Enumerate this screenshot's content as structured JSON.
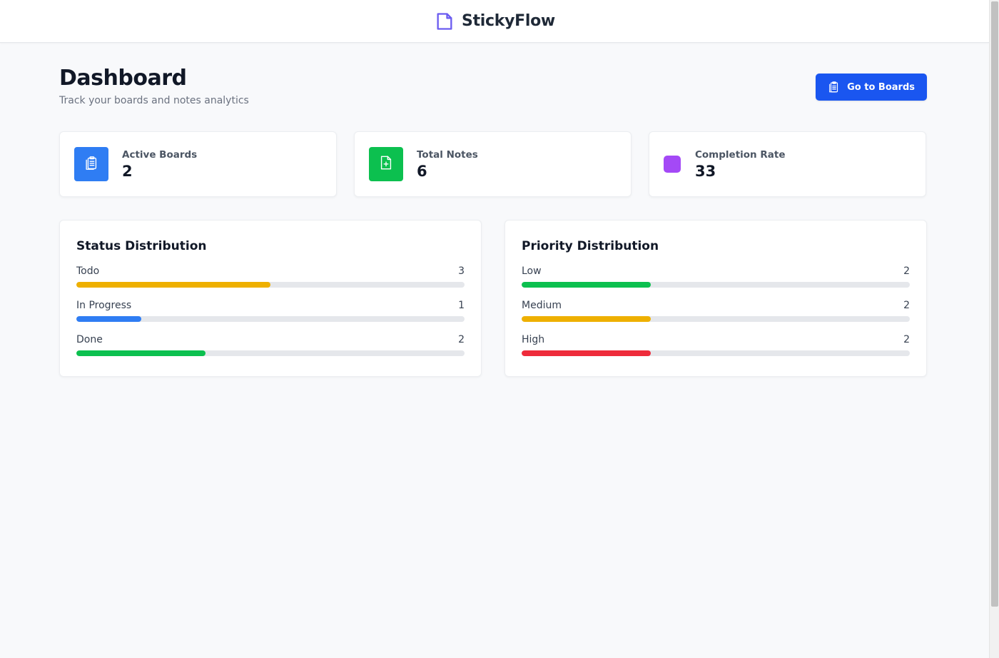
{
  "app": {
    "name": "StickyFlow"
  },
  "header": {
    "title": "Dashboard",
    "subtitle": "Track your boards and notes analytics",
    "go_boards_label": "Go to Boards"
  },
  "stats": {
    "active_boards": {
      "label": "Active Boards",
      "value": "2",
      "color": "#2f7df3",
      "icon": "clipboard-icon"
    },
    "total_notes": {
      "label": "Total Notes",
      "value": "6",
      "color": "#0cc04f",
      "icon": "file-plus-icon"
    },
    "completion_rate": {
      "label": "Completion Rate",
      "value": "33",
      "color": "#a449f6",
      "icon": "square-icon"
    }
  },
  "status_distribution": {
    "title": "Status Distribution",
    "items": [
      {
        "label": "Todo",
        "count": "3",
        "fraction": 0.5,
        "color": "#eeb000"
      },
      {
        "label": "In Progress",
        "count": "1",
        "fraction": 0.1667,
        "color": "#2f7df3"
      },
      {
        "label": "Done",
        "count": "2",
        "fraction": 0.3333,
        "color": "#0cc04f"
      }
    ]
  },
  "priority_distribution": {
    "title": "Priority Distribution",
    "items": [
      {
        "label": "Low",
        "count": "2",
        "fraction": 0.3333,
        "color": "#0cc04f"
      },
      {
        "label": "Medium",
        "count": "2",
        "fraction": 0.3333,
        "color": "#eeb000"
      },
      {
        "label": "High",
        "count": "2",
        "fraction": 0.3333,
        "color": "#ee2b3b"
      }
    ]
  },
  "colors": {
    "brand_icon": "#6b5cf0",
    "primary_button": "#1a56f0",
    "track": "#e5e7eb"
  }
}
